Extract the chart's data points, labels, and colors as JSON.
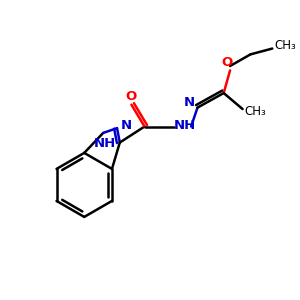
{
  "background_color": "#ffffff",
  "bond_color": "#000000",
  "nitrogen_color": "#0000cc",
  "oxygen_color": "#ff0000",
  "bond_width": 1.8,
  "figsize": [
    3.0,
    3.0
  ],
  "dpi": 100,
  "xlim": [
    0,
    10
  ],
  "ylim": [
    0,
    10
  ],
  "font_size_label": 9.5,
  "font_size_small": 8.5
}
